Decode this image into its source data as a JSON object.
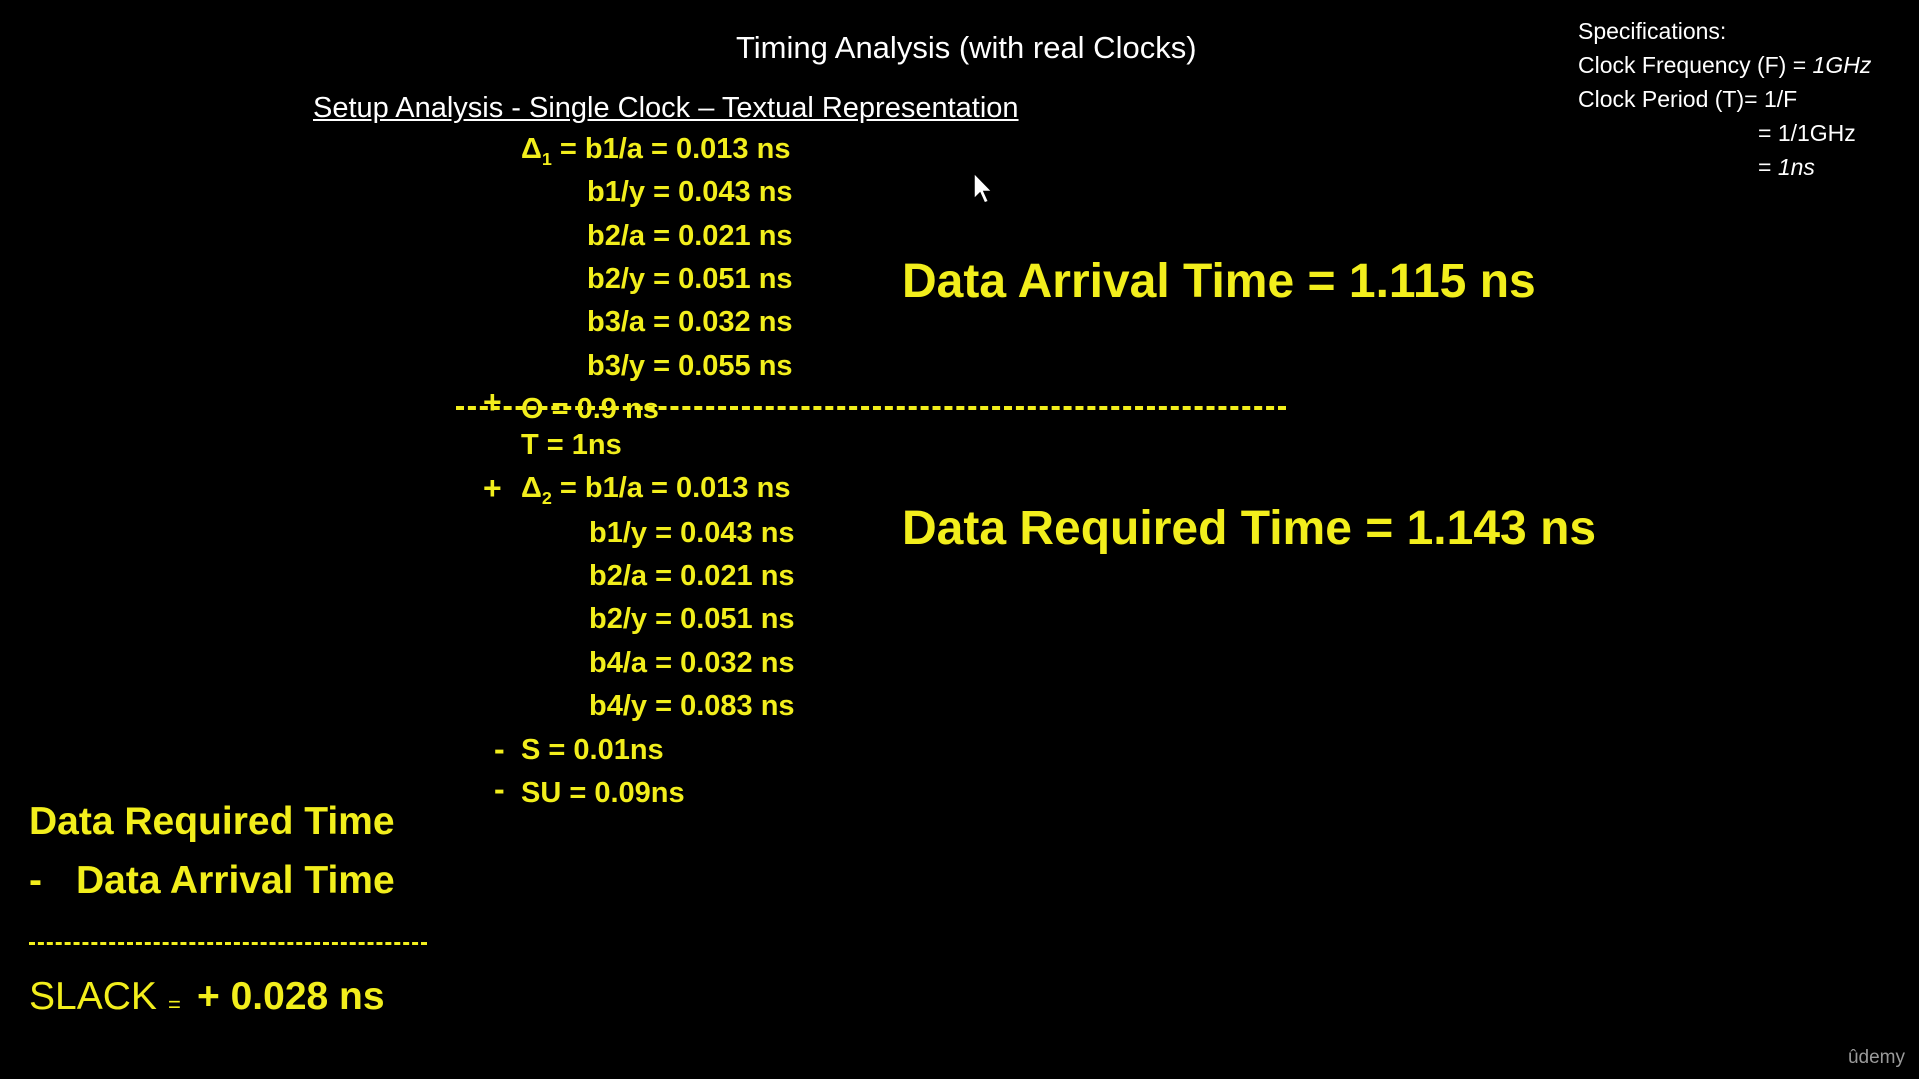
{
  "slide": {
    "title": "Timing Analysis (with real Clocks)",
    "subtitle": "Setup Analysis - Single Clock – Textual Representation"
  },
  "specifications": {
    "heading": "Specifications:",
    "freq_prefix": "Clock Frequency (F) = ",
    "freq_value": "1GHz",
    "period_line": "Clock Period (T)= 1/F",
    "period_step": "= 1/1GHz",
    "period_result_prefix": "= ",
    "period_result": "1ns"
  },
  "arrival": {
    "delta_symbol": "Δ",
    "delta_sub": "1",
    "first_text": " = b1/a = 0.013 ns",
    "lines": [
      "b1/y = 0.043 ns",
      "b2/a = 0.021 ns",
      "b2/y = 0.051 ns",
      "b3/a = 0.032 ns",
      "b3/y = 0.055 ns"
    ],
    "theta_sign": "+",
    "theta_text": "Θ  = 0.9 ns",
    "result": "Data Arrival Time = 1.115 ns"
  },
  "required": {
    "period_text": "T   = 1ns",
    "delta_sign": "+",
    "delta_symbol": "Δ",
    "delta_sub": "2",
    "first_text": " = b1/a = 0.013 ns",
    "lines": [
      "b1/y = 0.043 ns",
      "b2/a = 0.021 ns",
      "b2/y = 0.051 ns",
      "b4/a = 0.032 ns",
      "b4/y = 0.083 ns"
    ],
    "skew_sign": "-",
    "skew_text": "S    = 0.01ns",
    "setup_sign": "-",
    "setup_text": "SU = 0.09ns",
    "result": "Data Required Time = 1.143 ns"
  },
  "summary": {
    "line1": "Data Required Time",
    "line2_sign": "-",
    "line2": "Data Arrival Time",
    "slack_label": "SLACK",
    "slack_equals": "=",
    "slack_value": "+ 0.028 ns"
  },
  "branding": {
    "logo_text": "ûdemy"
  },
  "colors": {
    "background": "#000000",
    "accent": "#f2ee1c",
    "text": "#ffffff"
  }
}
